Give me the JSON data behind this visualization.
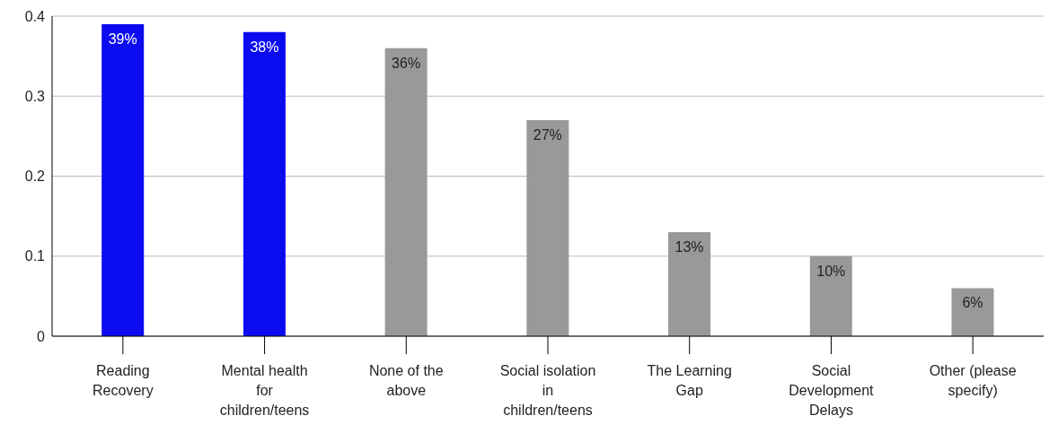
{
  "chart_data": {
    "type": "bar",
    "categories": [
      "Reading\nRecovery",
      "Mental health\nfor\nchildren/teens",
      "None of the\nabove",
      "Social isolation\nin\nchildren/teens",
      "The Learning\nGap",
      "Social\nDevelopment\nDelays",
      "Other (please\nspecify)"
    ],
    "values": [
      0.39,
      0.38,
      0.36,
      0.27,
      0.13,
      0.1,
      0.06
    ],
    "colors": [
      "#0b0bf0",
      "#0b0bf0",
      "#999999",
      "#999999",
      "#999999",
      "#999999",
      "#999999"
    ],
    "value_labels": [
      "39%",
      "38%",
      "36%",
      "27%",
      "13%",
      "10%",
      "6%"
    ],
    "ylim": [
      0,
      0.4
    ],
    "yticks": [
      0,
      0.1,
      0.2,
      0.3,
      0.4
    ],
    "grid": "y",
    "legend": false
  }
}
